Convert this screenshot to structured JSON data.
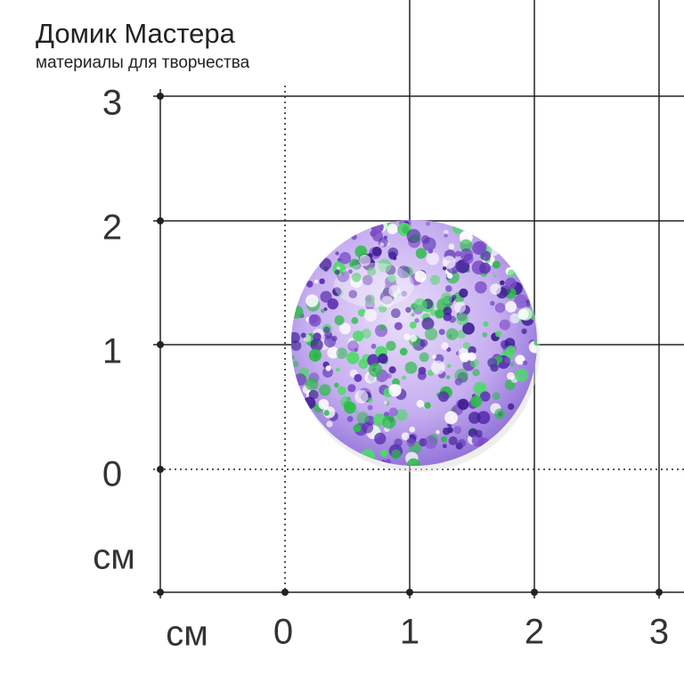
{
  "header": {
    "title": "Домик Мастера",
    "subtitle": "материалы для творчества"
  },
  "ruler": {
    "y_labels": [
      "3",
      "2",
      "1",
      "0"
    ],
    "y_unit": "см",
    "x_unit": "см",
    "x_labels": [
      "0",
      "1",
      "2",
      "3"
    ]
  }
}
